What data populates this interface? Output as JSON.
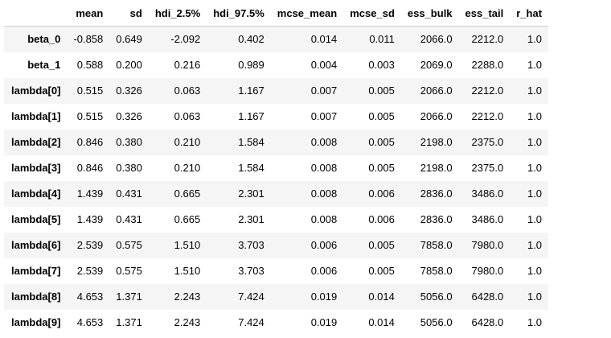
{
  "table": {
    "columns": [
      "mean",
      "sd",
      "hdi_2.5%",
      "hdi_97.5%",
      "mcse_mean",
      "mcse_sd",
      "ess_bulk",
      "ess_tail",
      "r_hat"
    ],
    "rows": [
      {
        "index": "beta_0",
        "values": [
          "-0.858",
          "0.649",
          "-2.092",
          "0.402",
          "0.014",
          "0.011",
          "2066.0",
          "2212.0",
          "1.0"
        ]
      },
      {
        "index": "beta_1",
        "values": [
          "0.588",
          "0.200",
          "0.216",
          "0.989",
          "0.004",
          "0.003",
          "2069.0",
          "2288.0",
          "1.0"
        ]
      },
      {
        "index": "lambda[0]",
        "values": [
          "0.515",
          "0.326",
          "0.063",
          "1.167",
          "0.007",
          "0.005",
          "2066.0",
          "2212.0",
          "1.0"
        ]
      },
      {
        "index": "lambda[1]",
        "values": [
          "0.515",
          "0.326",
          "0.063",
          "1.167",
          "0.007",
          "0.005",
          "2066.0",
          "2212.0",
          "1.0"
        ]
      },
      {
        "index": "lambda[2]",
        "values": [
          "0.846",
          "0.380",
          "0.210",
          "1.584",
          "0.008",
          "0.005",
          "2198.0",
          "2375.0",
          "1.0"
        ]
      },
      {
        "index": "lambda[3]",
        "values": [
          "0.846",
          "0.380",
          "0.210",
          "1.584",
          "0.008",
          "0.005",
          "2198.0",
          "2375.0",
          "1.0"
        ]
      },
      {
        "index": "lambda[4]",
        "values": [
          "1.439",
          "0.431",
          "0.665",
          "2.301",
          "0.008",
          "0.006",
          "2836.0",
          "3486.0",
          "1.0"
        ]
      },
      {
        "index": "lambda[5]",
        "values": [
          "1.439",
          "0.431",
          "0.665",
          "2.301",
          "0.008",
          "0.006",
          "2836.0",
          "3486.0",
          "1.0"
        ]
      },
      {
        "index": "lambda[6]",
        "values": [
          "2.539",
          "0.575",
          "1.510",
          "3.703",
          "0.006",
          "0.005",
          "7858.0",
          "7980.0",
          "1.0"
        ]
      },
      {
        "index": "lambda[7]",
        "values": [
          "2.539",
          "0.575",
          "1.510",
          "3.703",
          "0.006",
          "0.005",
          "7858.0",
          "7980.0",
          "1.0"
        ]
      },
      {
        "index": "lambda[8]",
        "values": [
          "4.653",
          "1.371",
          "2.243",
          "7.424",
          "0.019",
          "0.014",
          "5056.0",
          "6428.0",
          "1.0"
        ]
      },
      {
        "index": "lambda[9]",
        "values": [
          "4.653",
          "1.371",
          "2.243",
          "7.424",
          "0.019",
          "0.014",
          "5056.0",
          "6428.0",
          "1.0"
        ]
      }
    ]
  }
}
